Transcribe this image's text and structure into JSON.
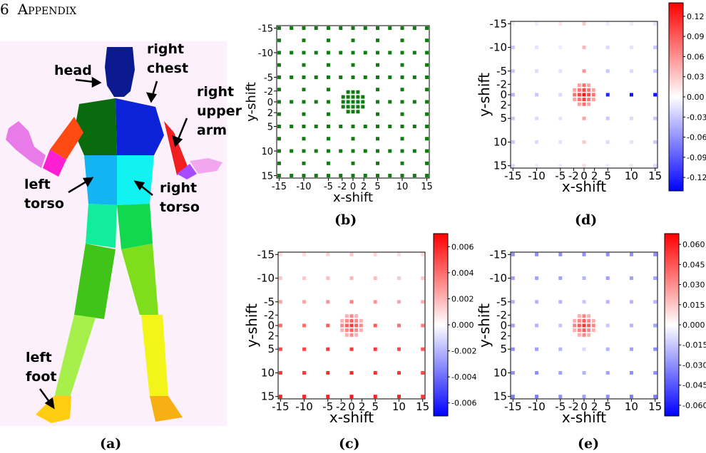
{
  "section": {
    "number": "6",
    "title": "Appendix"
  },
  "figure_a": {
    "caption": "(a)",
    "labels": {
      "head": "head",
      "right_chest": [
        "right",
        "chest"
      ],
      "right_upper_arm": [
        "right",
        "upper",
        "arm"
      ],
      "left_torso": [
        "left",
        "torso"
      ],
      "right_torso": [
        "right",
        "torso"
      ],
      "left_foot": [
        "left",
        "foot"
      ]
    },
    "colors": {
      "background": "#fbf0fb",
      "head": "#0b1a8e",
      "left_chest": "#0a6a0e",
      "right_chest": "#0b22d8",
      "left_upper_arm": "#ff4a12",
      "right_upper_arm": "#f01e1e",
      "left_lower_arm": "#ff1fd2",
      "right_lower_arm": "#a64bff",
      "left_hand": "#e97be9",
      "right_hand": "#f2a6f0",
      "left_torso": "#12b4f2",
      "right_torso": "#13f2f2",
      "left_hip": "#11ed9b",
      "right_hip": "#12d84f",
      "left_thigh": "#40c41a",
      "right_thigh": "#7ede1b",
      "left_shin": "#a7f04b",
      "right_shin": "#f2f517",
      "left_foot": "#ffcc10",
      "right_foot": "#f7af14"
    }
  },
  "chart_data": [
    {
      "panel": "b",
      "caption": "(b)",
      "type": "scatter",
      "description_values": "sampled shift offsets",
      "xlabel": "x-shift",
      "ylabel": "y-shift",
      "xticks": [
        "-15",
        "-10",
        "-5",
        "-2",
        "0",
        "2",
        "5",
        "10",
        "15"
      ],
      "yticks": [
        "-15",
        "-10",
        "-5",
        "-2",
        "0",
        "2",
        "5",
        "10",
        "15"
      ],
      "xlim": [
        -15,
        15
      ],
      "ylim": [
        -15,
        15
      ],
      "outer_offsets": [
        -15,
        -12.5,
        -10,
        -7.5,
        -5,
        -2.5,
        0,
        2.5,
        5,
        7.5,
        10,
        12.5,
        15
      ],
      "outer_step": 5,
      "inner_offsets": [
        -2,
        -1,
        0,
        1,
        2
      ],
      "point_color": "#117a11"
    },
    {
      "panel": "c",
      "caption": "(c)",
      "type": "heatmap",
      "xlabel": "x-shift",
      "ylabel": "y-shift",
      "xticks": [
        "-15",
        "-10",
        "-5",
        "-2",
        "0",
        "2",
        "5",
        "10",
        "15"
      ],
      "yticks": [
        "-15",
        "-10",
        "-5",
        "-2",
        "0",
        "2",
        "5",
        "10",
        "15"
      ],
      "colorbar_ticks": [
        "0.006",
        "0.004",
        "0.002",
        "0.000",
        "-0.002",
        "-0.004",
        "-0.006"
      ],
      "colorbar_range": [
        -0.007,
        0.007
      ],
      "outer_values": {
        "rows": [
          -15,
          -10,
          -5,
          0,
          5,
          10,
          15
        ],
        "cols": [
          -15,
          -10,
          -5,
          0,
          5,
          10,
          15
        ],
        "values": [
          [
            0.001,
            0.001,
            0.0012,
            0.0015,
            0.0012,
            0.001,
            0.001
          ],
          [
            0.0015,
            0.0015,
            0.0018,
            0.002,
            0.0018,
            0.0015,
            0.0015
          ],
          [
            0.0025,
            0.0025,
            0.003,
            0.0035,
            0.003,
            0.0025,
            0.0022
          ],
          [
            0.004,
            0.004,
            0.0045,
            0.005,
            0.0045,
            0.004,
            0.0035
          ],
          [
            0.005,
            0.005,
            0.0055,
            0.0055,
            0.0055,
            0.005,
            0.0045
          ],
          [
            0.0055,
            0.0055,
            0.0058,
            0.006,
            0.0058,
            0.0055,
            0.005
          ],
          [
            0.006,
            0.006,
            0.0062,
            0.0065,
            0.0062,
            0.006,
            0.0055
          ]
        ]
      },
      "center_value": 0.0055
    },
    {
      "panel": "d",
      "caption": "(d)",
      "type": "heatmap",
      "xlabel": "x-shift",
      "ylabel": "y-shift",
      "xticks": [
        "-15",
        "-10",
        "-5",
        "-2",
        "0",
        "2",
        "5",
        "10",
        "15"
      ],
      "yticks": [
        "-15",
        "-10",
        "-5",
        "-2",
        "0",
        "2",
        "5",
        "10",
        "15"
      ],
      "colorbar_ticks": [
        "0.12",
        "0.09",
        "0.06",
        "0.03",
        "0.00",
        "-0.03",
        "-0.06",
        "-0.09",
        "-0.12"
      ],
      "colorbar_range": [
        -0.14,
        0.14
      ],
      "outer_values": {
        "rows": [
          -15,
          -10,
          -5,
          0,
          5,
          10,
          15
        ],
        "cols": [
          -15,
          -10,
          -5,
          0,
          5,
          10,
          15
        ],
        "values": [
          [
            -0.01,
            -0.01,
            0.015,
            0.03,
            -0.01,
            -0.01,
            -0.015
          ],
          [
            -0.03,
            -0.015,
            -0.01,
            0.04,
            -0.02,
            -0.015,
            -0.03
          ],
          [
            -0.03,
            -0.02,
            -0.015,
            0.06,
            -0.03,
            -0.02,
            -0.03
          ],
          [
            -0.04,
            -0.03,
            -0.02,
            0.1,
            -0.12,
            -0.13,
            -0.13
          ],
          [
            -0.03,
            -0.02,
            -0.015,
            0.05,
            -0.03,
            -0.02,
            -0.03
          ],
          [
            -0.03,
            -0.02,
            -0.015,
            0.03,
            -0.02,
            -0.015,
            -0.03
          ],
          [
            -0.02,
            -0.01,
            -0.01,
            0.02,
            -0.01,
            -0.01,
            -0.02
          ]
        ]
      },
      "center_value": 0.13
    },
    {
      "panel": "e",
      "caption": "(e)",
      "type": "heatmap",
      "xlabel": "x-shift",
      "ylabel": "y-shift",
      "xticks": [
        "-15",
        "-10",
        "-5",
        "-2",
        "0",
        "2",
        "5",
        "10",
        "15"
      ],
      "yticks": [
        "-15",
        "-10",
        "-5",
        "-2",
        "0",
        "2",
        "5",
        "10",
        "15"
      ],
      "colorbar_ticks": [
        "0.060",
        "0.045",
        "0.030",
        "0.015",
        "0.000",
        "-0.015",
        "-0.030",
        "-0.045",
        "-0.060"
      ],
      "colorbar_range": [
        -0.068,
        0.068
      ],
      "outer_values": {
        "rows": [
          -15,
          -10,
          -5,
          0,
          5,
          10,
          15
        ],
        "cols": [
          -15,
          -10,
          -5,
          0,
          5,
          10,
          15
        ],
        "values": [
          [
            -0.03,
            -0.03,
            -0.03,
            -0.03,
            -0.03,
            -0.03,
            -0.03
          ],
          [
            -0.025,
            -0.025,
            -0.025,
            -0.02,
            -0.025,
            -0.025,
            -0.025
          ],
          [
            -0.02,
            -0.02,
            -0.02,
            -0.015,
            -0.02,
            -0.02,
            -0.02
          ],
          [
            -0.025,
            -0.02,
            -0.015,
            0.02,
            -0.015,
            -0.02,
            -0.025
          ],
          [
            -0.03,
            -0.025,
            -0.02,
            -0.01,
            -0.02,
            -0.025,
            -0.03
          ],
          [
            -0.03,
            -0.03,
            -0.025,
            -0.02,
            -0.025,
            -0.03,
            -0.03
          ],
          [
            -0.035,
            -0.035,
            -0.03,
            -0.025,
            -0.03,
            -0.035,
            -0.035
          ]
        ]
      },
      "center_value": 0.055
    }
  ]
}
